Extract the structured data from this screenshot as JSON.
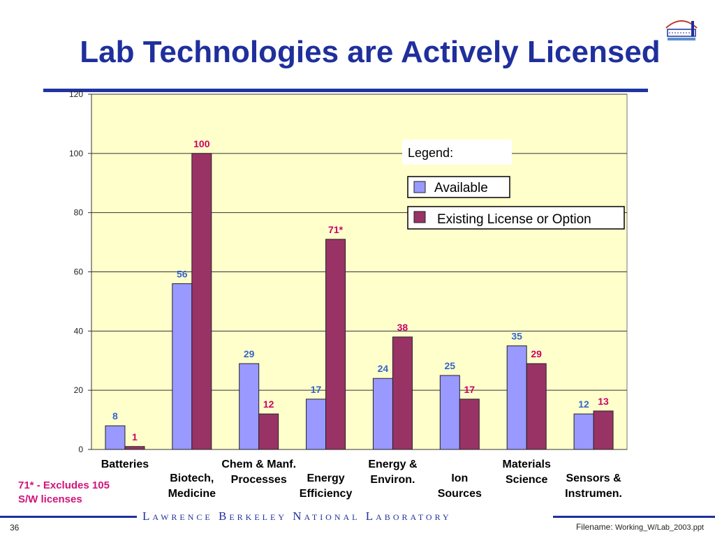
{
  "slide": {
    "title": "Lab Technologies are Actively Licensed",
    "footnote_line1": "71* - Excludes 105",
    "footnote_line2": "S/W licenses",
    "footer_text": "Lawrence Berkeley National Laboratory",
    "page_number": "36",
    "filename_label": "Filename:",
    "filename_value": "Working_W/Lab_2003.ppt"
  },
  "colors": {
    "title": "#1f2f9c",
    "plot_background": "#ffffcc",
    "available": "#9999ff",
    "existing": "#993366",
    "available_label": "#3366cc",
    "existing_label": "#cc0066"
  },
  "chart_data": {
    "type": "bar",
    "categories": [
      [
        "Batteries"
      ],
      [
        "Biotech,",
        "Medicine"
      ],
      [
        "Chem & Manf.",
        "Processes"
      ],
      [
        "Energy",
        "Efficiency"
      ],
      [
        "Energy &",
        "Environ."
      ],
      [
        "Ion",
        "Sources"
      ],
      [
        "Materials",
        "Science"
      ],
      [
        "Sensors &",
        "Instrumen."
      ]
    ],
    "series": [
      {
        "name": "Available",
        "values": [
          8,
          56,
          29,
          17,
          24,
          25,
          35,
          12
        ]
      },
      {
        "name": "Existing License or Option",
        "values": [
          1,
          100,
          12,
          71,
          38,
          17,
          29,
          13
        ]
      }
    ],
    "data_labels": [
      [
        "8",
        "56",
        "29",
        "17",
        "24",
        "25",
        "35",
        "12"
      ],
      [
        "1",
        "100",
        "12",
        "71*",
        "38",
        "17",
        "29",
        "13"
      ]
    ],
    "yticks": [
      0,
      20,
      40,
      60,
      80,
      100,
      120
    ],
    "ylim": [
      0,
      120
    ],
    "grid": true,
    "legend_title": "Legend:",
    "legend_position": "top-right"
  }
}
